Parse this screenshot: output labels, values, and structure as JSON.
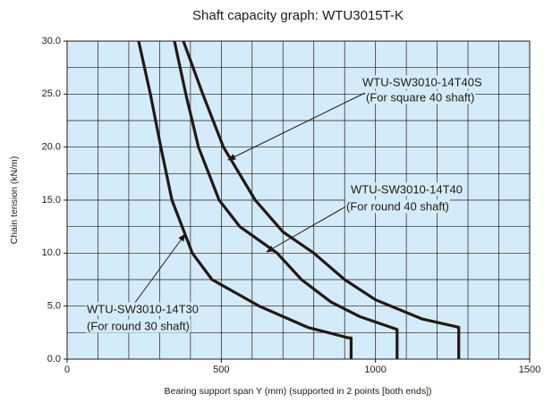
{
  "chart_data": {
    "type": "line",
    "title": "Shaft capacity graph: WTU3015T-K",
    "x_label": "Bearing support span Y (mm) (supported in 2 points [both ends])",
    "y_label": "Chain tension (kN/m)",
    "xlim": [
      0,
      1500
    ],
    "ylim": [
      0,
      30
    ],
    "xticks": [
      0,
      500,
      1000,
      1500
    ],
    "yticks": [
      {
        "value": 0,
        "label": "0.0"
      },
      {
        "value": 5,
        "label": "5.0"
      },
      {
        "value": 10,
        "label": "10.0"
      },
      {
        "value": 15,
        "label": "15.0"
      },
      {
        "value": 20,
        "label": "20.0"
      },
      {
        "value": 25,
        "label": "25.0"
      },
      {
        "value": 30,
        "label": "30.0"
      }
    ],
    "grid": true,
    "grid_step": {
      "x": 100,
      "y": 2.5
    },
    "background": "#d4ecf9",
    "series": [
      {
        "name": "WTU-SW3010-14T40S",
        "note": "(For square 40 shaft)",
        "color": "#231815",
        "x": [
          377,
          440,
          507,
          610,
          700,
          800,
          900,
          1000,
          1150,
          1270,
          1270
        ],
        "values": [
          30,
          25,
          20,
          15,
          12,
          10,
          7.5,
          5.6,
          3.8,
          3,
          0
        ]
      },
      {
        "name": "WTU-SW3010-14T40",
        "note": "(For round 40 shaft)",
        "color": "#231815",
        "x": [
          348,
          385,
          426,
          493,
          560,
          681,
          760,
          855,
          950,
          1070,
          1070
        ],
        "values": [
          30,
          25,
          20,
          15,
          12.5,
          10,
          7.5,
          5.4,
          4,
          2.8,
          0
        ]
      },
      {
        "name": "WTU-SW3010-14T30",
        "note": "(For round 30 shaft)",
        "color": "#231815",
        "x": [
          232,
          270,
          304,
          340,
          406,
          470,
          623,
          780,
          913,
          921,
          921
        ],
        "values": [
          30,
          25,
          20,
          15,
          10,
          7.5,
          5,
          3,
          2,
          2,
          0
        ]
      }
    ]
  }
}
